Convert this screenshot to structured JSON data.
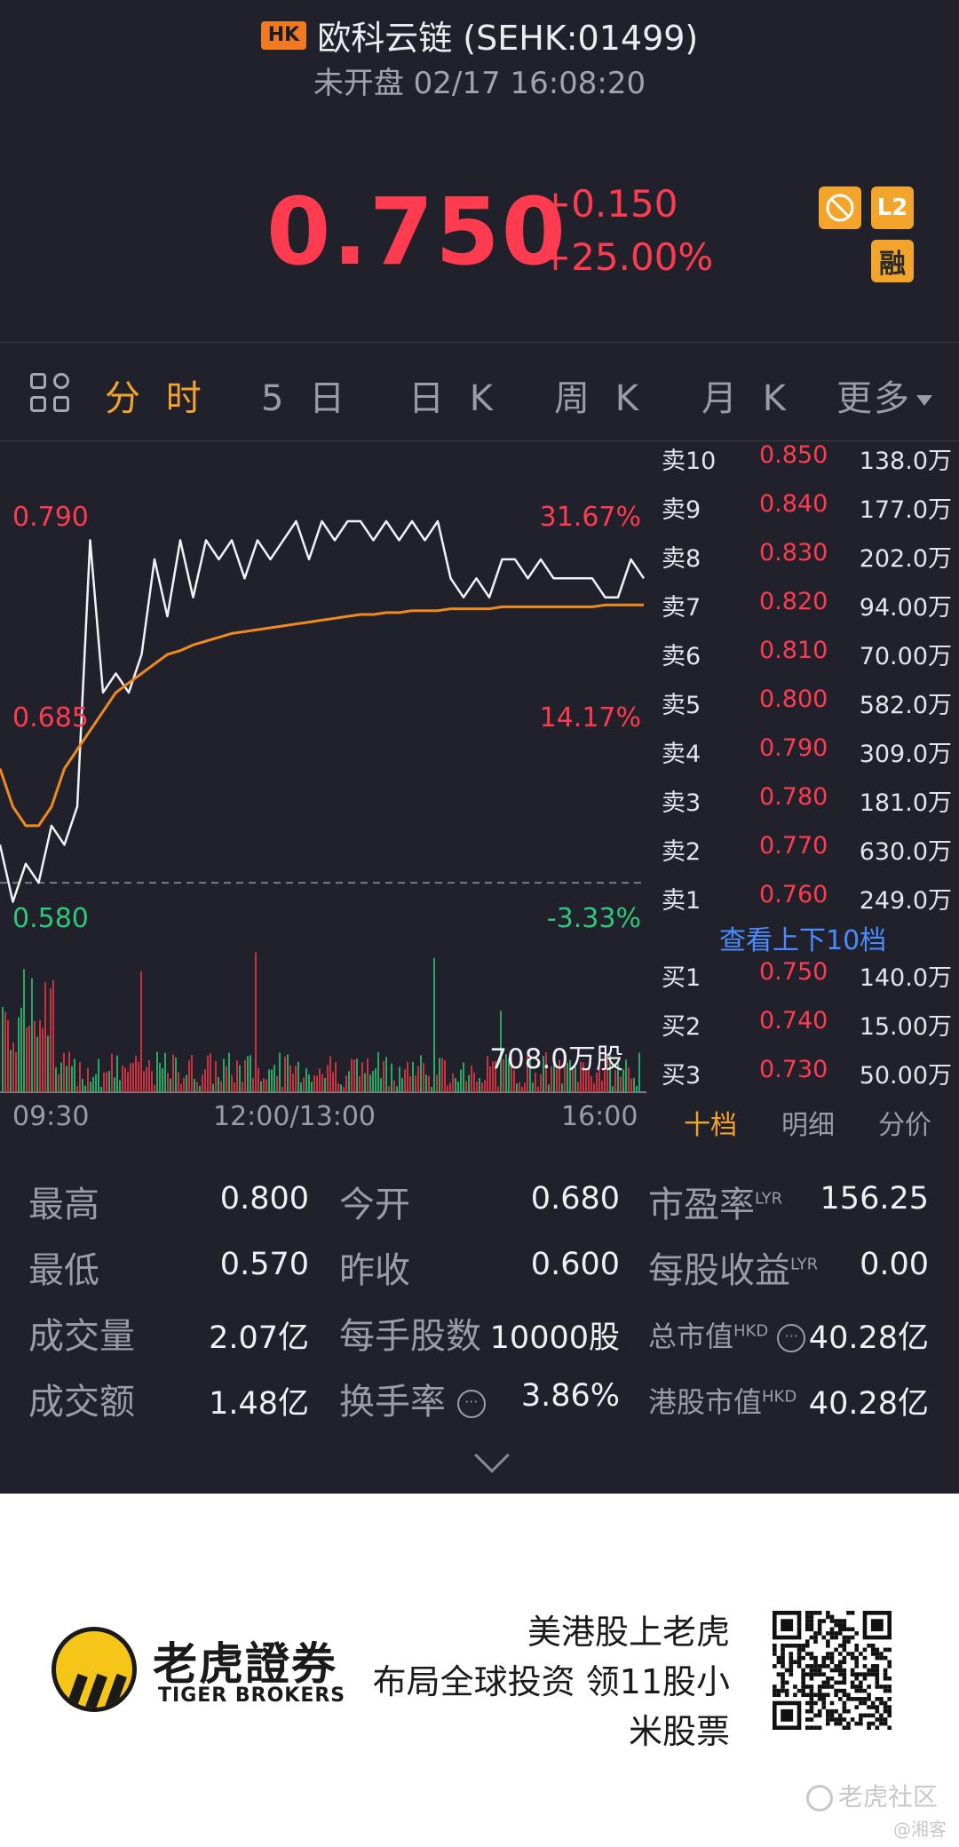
{
  "header": {
    "market_badge": "HK",
    "title": "欧科云链 (SEHK:01499)",
    "subtitle": "未开盘 02/17 16:08:20",
    "price": "0.750",
    "change": "+0.150",
    "change_pct": "+25.00%",
    "badges": {
      "l2": "L2",
      "margin": "融",
      "nofill_icon": "no-short-icon"
    }
  },
  "tabs": [
    {
      "label": "分 时",
      "active": true
    },
    {
      "label": "5 日"
    },
    {
      "label": "日 K"
    },
    {
      "label": "周 K"
    },
    {
      "label": "月 K"
    },
    {
      "label": "更多"
    }
  ],
  "chart": {
    "price_labels": {
      "top": "0.790",
      "mid": "0.685",
      "bottom": "0.580"
    },
    "pct_labels": {
      "top": "31.67%",
      "mid": "14.17%",
      "bottom": "-3.33%"
    },
    "volume_label": "708.0万股",
    "time_labels": [
      "09:30",
      "12:00/13:00",
      "16:00"
    ]
  },
  "chart_data": {
    "type": "line",
    "y_range": [
      0.58,
      0.79
    ],
    "prev_close": 0.6,
    "series": [
      {
        "values": [
          0.62,
          0.59,
          0.61,
          0.6,
          0.63,
          0.62,
          0.64,
          0.78,
          0.7,
          0.71,
          0.7,
          0.72,
          0.77,
          0.74,
          0.78,
          0.75,
          0.78,
          0.77,
          0.78,
          0.76,
          0.78,
          0.77,
          0.78,
          0.79,
          0.77,
          0.79,
          0.78,
          0.79,
          0.79,
          0.78,
          0.79,
          0.78,
          0.79,
          0.78,
          0.79,
          0.76,
          0.75,
          0.76,
          0.75,
          0.77,
          0.77,
          0.76,
          0.77,
          0.76,
          0.76,
          0.76,
          0.76,
          0.75,
          0.75,
          0.77,
          0.76
        ]
      },
      {
        "values": [
          0.66,
          0.64,
          0.63,
          0.63,
          0.64,
          0.66,
          0.67,
          0.68,
          0.69,
          0.7,
          0.705,
          0.71,
          0.715,
          0.72,
          0.722,
          0.725,
          0.727,
          0.729,
          0.731,
          0.732,
          0.733,
          0.734,
          0.735,
          0.736,
          0.737,
          0.738,
          0.739,
          0.74,
          0.741,
          0.741,
          0.742,
          0.742,
          0.743,
          0.743,
          0.743,
          0.744,
          0.744,
          0.744,
          0.744,
          0.745,
          0.745,
          0.745,
          0.745,
          0.745,
          0.745,
          0.745,
          0.745,
          0.746,
          0.746,
          0.746,
          0.746
        ]
      }
    ]
  },
  "orderbook": {
    "asks": [
      {
        "label": "卖10",
        "price": "0.850",
        "vol": "138.0万"
      },
      {
        "label": "卖9",
        "price": "0.840",
        "vol": "177.0万"
      },
      {
        "label": "卖8",
        "price": "0.830",
        "vol": "202.0万"
      },
      {
        "label": "卖7",
        "price": "0.820",
        "vol": "94.00万"
      },
      {
        "label": "卖6",
        "price": "0.810",
        "vol": "70.00万"
      },
      {
        "label": "卖5",
        "price": "0.800",
        "vol": "582.0万"
      },
      {
        "label": "卖4",
        "price": "0.790",
        "vol": "309.0万"
      },
      {
        "label": "卖3",
        "price": "0.780",
        "vol": "181.0万"
      },
      {
        "label": "卖2",
        "price": "0.770",
        "vol": "630.0万"
      },
      {
        "label": "卖1",
        "price": "0.760",
        "vol": "249.0万"
      }
    ],
    "link": "查看上下10档",
    "bids": [
      {
        "label": "买1",
        "price": "0.750",
        "vol": "140.0万"
      },
      {
        "label": "买2",
        "price": "0.740",
        "vol": "15.00万"
      },
      {
        "label": "买3",
        "price": "0.730",
        "vol": "50.00万"
      }
    ],
    "tabs": [
      "十档",
      "明细",
      "分价"
    ]
  },
  "stats": {
    "high_label": "最高",
    "high": "0.800",
    "low_label": "最低",
    "low": "0.570",
    "volume_label": "成交量",
    "volume": "2.07亿",
    "turnover_label": "成交额",
    "turnover": "1.48亿",
    "open_label": "今开",
    "open": "0.680",
    "prev_close_label": "昨收",
    "prev_close": "0.600",
    "lot_label": "每手股数",
    "lot": "10000股",
    "turnover_rate_label": "换手率",
    "turnover_rate": "3.86%",
    "pe_label": "市盈率",
    "pe_sup": "LYR",
    "pe": "156.25",
    "eps_label": "每股收益",
    "eps_sup": "LYR",
    "eps": "0.00",
    "mktcap_label": "总市值",
    "mktcap_sup": "HKD",
    "mktcap": "40.28亿",
    "hk_mktcap_label": "港股市值",
    "hk_mktcap_sup": "HKD",
    "hk_mktcap": "40.28亿"
  },
  "banner": {
    "brand_cn": "老虎證券",
    "brand_en": "TIGER BROKERS",
    "slogan1": "美港股上老虎",
    "slogan2": "布局全球投资 领11股小",
    "slogan3": "米股票",
    "watermark": "老虎社区",
    "watermark2": "@湘客"
  }
}
